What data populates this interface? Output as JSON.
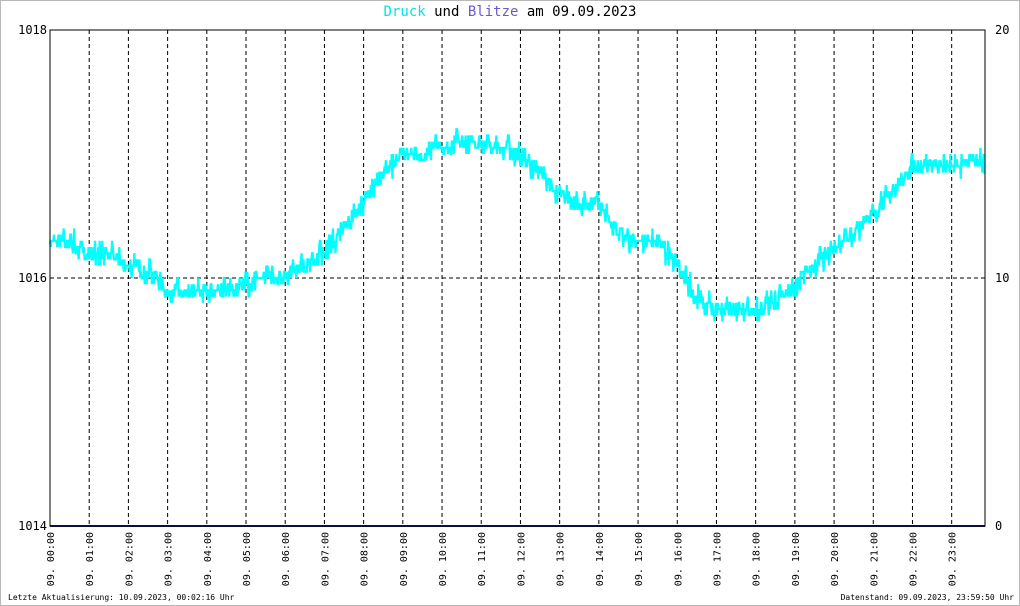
{
  "title": {
    "series1": "Druck",
    "word_und": "und",
    "series2": "Blitze",
    "word_am": "am",
    "date": "09.09.2023"
  },
  "footer": {
    "left": "Letzte Aktualisierung: 10.09.2023, 00:02:16 Uhr",
    "right": "Datenstand: 09.09.2023, 23:59:50 Uhr"
  },
  "colors": {
    "druck": "#00ffff",
    "blitze": "#1a1a80",
    "grid": "#000000"
  },
  "chart_data": {
    "type": "line",
    "left_axis": {
      "range": [
        1014,
        1018
      ],
      "ticks": [
        "1014",
        "1016",
        "1018"
      ]
    },
    "right_axis": {
      "range": [
        0,
        20
      ],
      "ticks": [
        "0",
        "10",
        "20"
      ]
    },
    "x_ticks": [
      "09. 00:00",
      "09. 01:00",
      "09. 02:00",
      "09. 03:00",
      "09. 04:00",
      "09. 05:00",
      "09. 06:00",
      "09. 07:00",
      "09. 08:00",
      "09. 09:00",
      "09. 10:00",
      "09. 11:00",
      "09. 12:00",
      "09. 13:00",
      "09. 14:00",
      "09. 15:00",
      "09. 16:00",
      "09. 17:00",
      "09. 18:00",
      "09. 19:00",
      "09. 20:00",
      "09. 21:00",
      "09. 22:00",
      "09. 23:00"
    ],
    "grid": "dashed",
    "series": [
      {
        "name": "Druck",
        "axis": "left",
        "hours": [
          0,
          0.5,
          1,
          1.5,
          2,
          2.5,
          3,
          3.5,
          4,
          4.5,
          5,
          5.5,
          6,
          6.5,
          7,
          7.5,
          8,
          8.5,
          9,
          9.5,
          10,
          10.5,
          11,
          11.5,
          12,
          12.5,
          13,
          13.5,
          14,
          14.5,
          15,
          15.5,
          16,
          16.5,
          17,
          17.5,
          18,
          18.5,
          19,
          19.5,
          20,
          20.5,
          21,
          21.5,
          22,
          22.5,
          23,
          23.5,
          24
        ],
        "values": [
          1016.3,
          1016.3,
          1016.2,
          1016.2,
          1016.1,
          1016.05,
          1015.9,
          1015.9,
          1015.9,
          1015.9,
          1015.95,
          1016.0,
          1016.0,
          1016.1,
          1016.2,
          1016.4,
          1016.6,
          1016.85,
          1017.0,
          1017.0,
          1017.05,
          1017.1,
          1017.1,
          1017.05,
          1017.0,
          1016.85,
          1016.65,
          1016.6,
          1016.6,
          1016.35,
          1016.3,
          1016.3,
          1016.1,
          1015.85,
          1015.75,
          1015.75,
          1015.75,
          1015.8,
          1015.95,
          1016.1,
          1016.25,
          1016.35,
          1016.5,
          1016.7,
          1016.9,
          1016.9,
          1016.9,
          1016.95,
          1016.9
        ]
      },
      {
        "name": "Blitze",
        "axis": "right",
        "hours": [
          0,
          24
        ],
        "values": [
          0,
          0
        ]
      }
    ]
  }
}
